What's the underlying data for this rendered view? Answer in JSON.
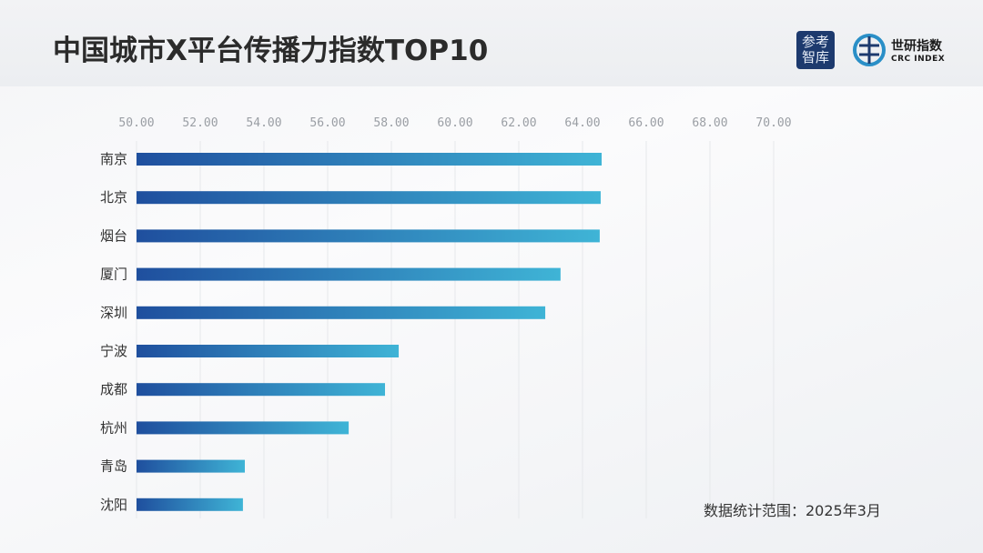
{
  "header": {
    "title": "中国城市X平台传播力指数TOP10",
    "logo1_text": "参考智库",
    "logo2_cn": "世研指数",
    "logo2_en": "CRC INDEX"
  },
  "note": "数据统计范围：2025年3月",
  "colors": {
    "bar_start": "#1f4f9e",
    "bar_end": "#3fb4d6"
  },
  "chart_data": {
    "type": "bar",
    "orientation": "horizontal",
    "title": "中国城市X平台传播力指数TOP10",
    "categories": [
      "南京",
      "北京",
      "烟台",
      "厦门",
      "深圳",
      "宁波",
      "成都",
      "杭州",
      "青岛",
      "沈阳"
    ],
    "values": [
      64.6,
      64.57,
      64.54,
      63.31,
      62.83,
      58.23,
      57.8,
      56.66,
      53.4,
      53.34
    ],
    "xlim": [
      50,
      70
    ],
    "tick_labels": [
      "50.00",
      "52.00",
      "54.00",
      "56.00",
      "58.00",
      "60.00",
      "62.00",
      "64.00",
      "66.00",
      "68.00",
      "70.00"
    ],
    "grid": true,
    "xaxis_position": "top"
  }
}
